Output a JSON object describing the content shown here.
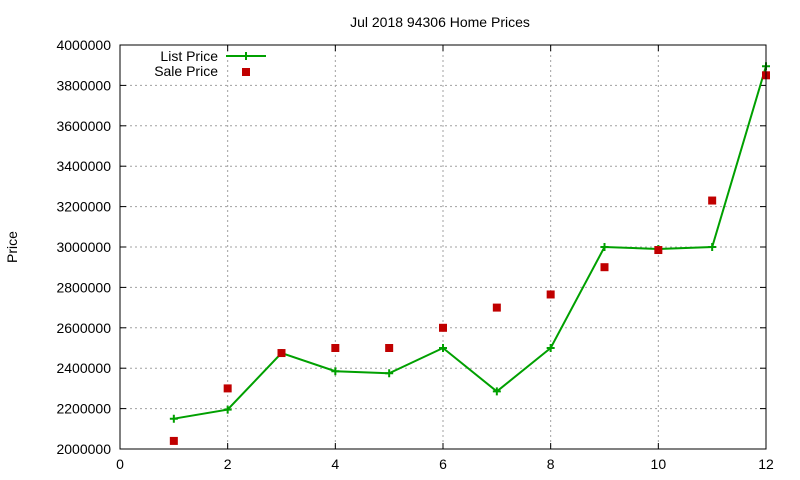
{
  "chart_data": {
    "type": "line",
    "title": "Jul 2018 94306 Home Prices",
    "xlabel": "",
    "ylabel": "Price",
    "xlim": [
      0,
      12
    ],
    "ylim": [
      2000000,
      4000000
    ],
    "xticks": [
      0,
      2,
      4,
      6,
      8,
      10,
      12
    ],
    "yticks": [
      2000000,
      2200000,
      2400000,
      2600000,
      2800000,
      3000000,
      3200000,
      3400000,
      3600000,
      3800000,
      4000000
    ],
    "xtick_labels": [
      "0",
      "2",
      "4",
      "6",
      "8",
      "10",
      "12"
    ],
    "ytick_labels": [
      "2000000",
      "2200000",
      "2400000",
      "2600000",
      "2800000",
      "3000000",
      "3200000",
      "3400000",
      "3600000",
      "3800000",
      "4000000"
    ],
    "grid": true,
    "legend_position": "top-left",
    "series": [
      {
        "name": "List Price",
        "kind": "line-points",
        "color": "#00a000",
        "x": [
          1,
          2,
          3,
          4,
          5,
          6,
          7,
          8,
          9,
          10,
          11,
          12
        ],
        "y": [
          2150000,
          2195000,
          2475000,
          2385000,
          2375000,
          2500000,
          2285000,
          2500000,
          3000000,
          2990000,
          3000000,
          3895000
        ]
      },
      {
        "name": "Sale Price",
        "kind": "points",
        "color": "#c00000",
        "x": [
          1,
          2,
          3,
          4,
          5,
          6,
          7,
          8,
          9,
          10,
          11,
          12
        ],
        "y": [
          2040000,
          2300000,
          2475000,
          2500000,
          2500000,
          2600000,
          2700000,
          2765000,
          2900000,
          2985000,
          3230000,
          3850000
        ]
      }
    ]
  }
}
